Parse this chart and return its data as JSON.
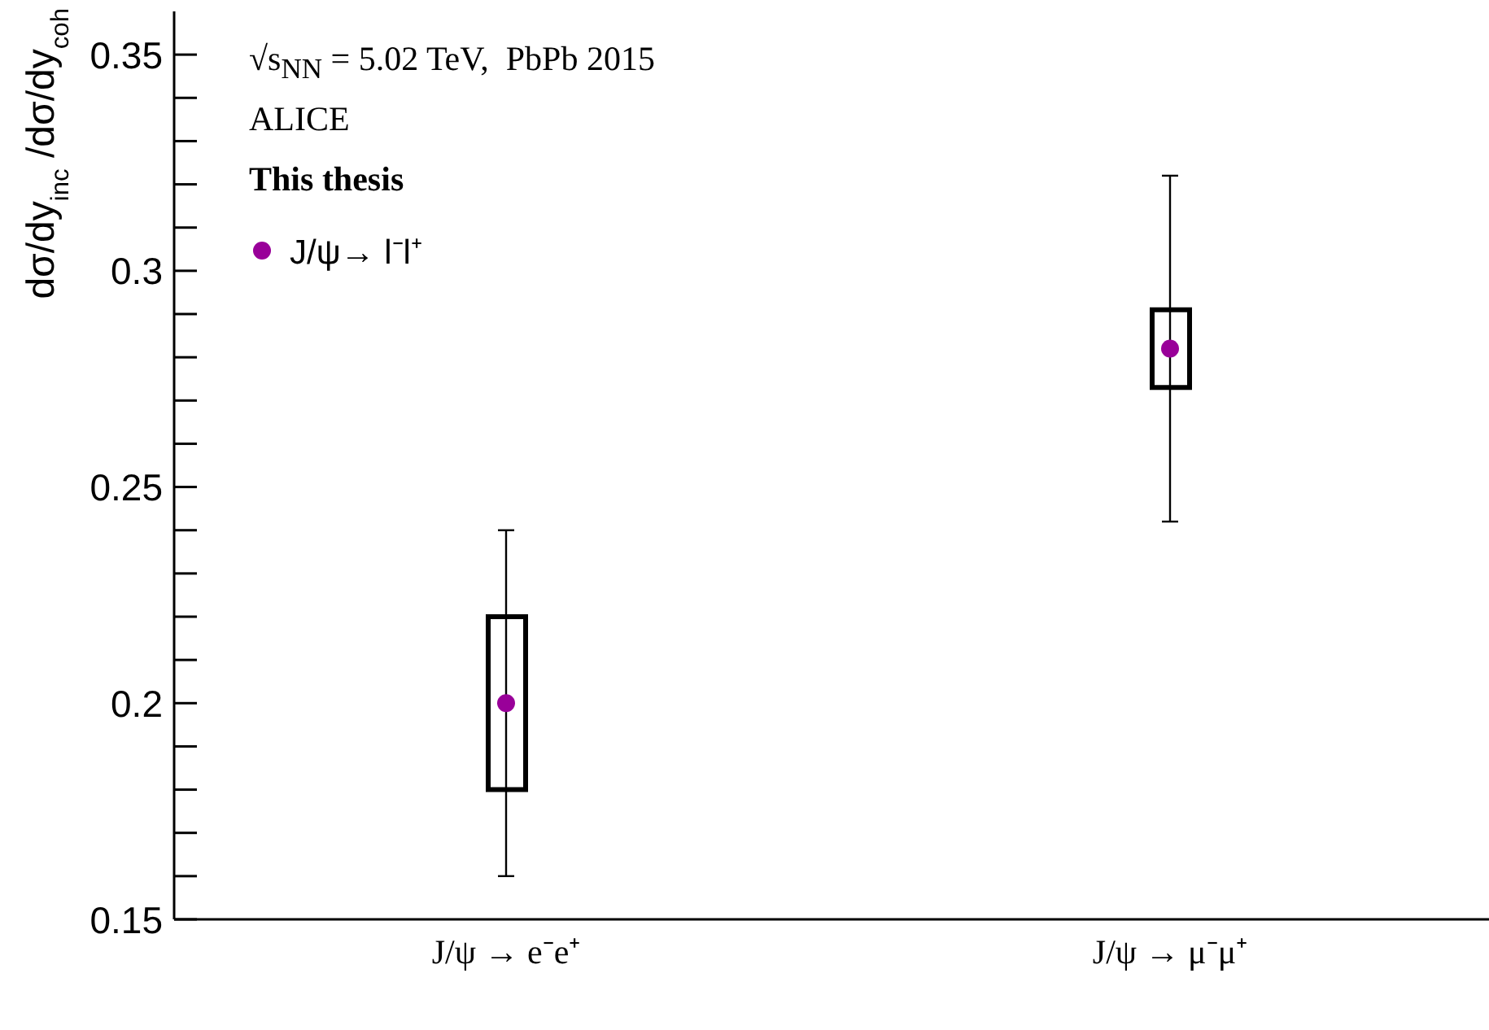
{
  "chart_data": {
    "type": "scatter",
    "annotations": [
      "√s$_{NN}$ = 5.02 TeV,  PbPb 2015",
      "ALICE",
      "This thesis"
    ],
    "ylabel": "dσ/dy$_{inc}$ /dσ/dy$_{coh}$",
    "categories": [
      "J/ψ → e⁻e⁺",
      "J/ψ → μ⁻μ⁺"
    ],
    "series": [
      {
        "type": "bar",
        "color": "#000000",
        "base": [
          0.18,
          0.273
        ],
        "values": [
          0.04,
          0.018
        ]
      },
      {
        "name": "J/ψ→ l⁻l⁺",
        "color": "#990099",
        "values": [
          0.2,
          0.282
        ],
        "errors": [
          0.04,
          0.04
        ]
      }
    ],
    "ylim": [
      0.15,
      0.36
    ],
    "yticks": [
      0.15,
      {
        "value": 0.16,
        "label": null
      },
      {
        "value": 0.17,
        "label": null
      },
      {
        "value": 0.18,
        "label": null
      },
      {
        "value": 0.19,
        "label": null
      },
      0.2,
      {
        "value": 0.21,
        "label": null
      },
      {
        "value": 0.22,
        "label": null
      },
      {
        "value": 0.23,
        "label": null
      },
      {
        "value": 0.24,
        "label": null
      },
      0.25,
      {
        "value": 0.26,
        "label": null
      },
      {
        "value": 0.27,
        "label": null
      },
      {
        "value": 0.28,
        "label": null
      },
      {
        "value": 0.29,
        "label": null
      },
      0.3,
      {
        "value": 0.31,
        "label": null
      },
      {
        "value": 0.32,
        "label": null
      },
      {
        "value": 0.33,
        "label": null
      },
      {
        "value": 0.34,
        "label": null
      },
      0.35
    ],
    "legend": "top left",
    "marker": "circle"
  }
}
